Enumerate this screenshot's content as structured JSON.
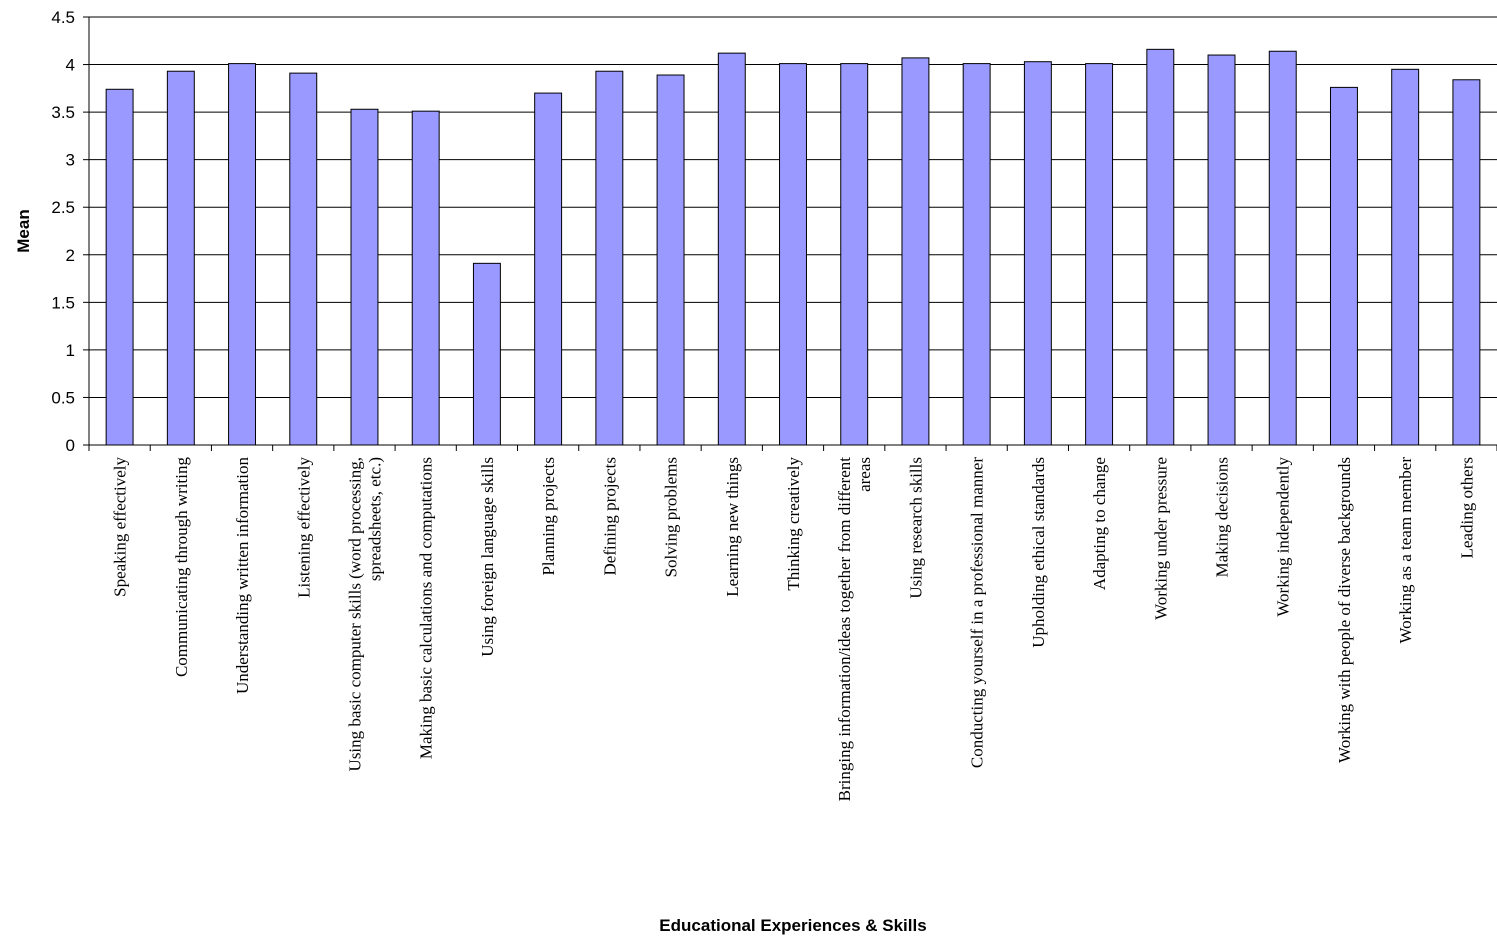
{
  "chart_data": {
    "type": "bar",
    "title": "",
    "xlabel": "Educational Experiences & Skills",
    "ylabel": "Mean",
    "ylim": [
      0,
      4.5
    ],
    "ytick_step": 0.5,
    "grid": true,
    "legend": "none",
    "bar_color": "#9999ff",
    "bar_outline": "#000000",
    "yticks": [
      "0",
      "0.5",
      "1",
      "1.5",
      "2",
      "2.5",
      "3",
      "3.5",
      "4",
      "4.5"
    ],
    "categories": [
      [
        "Speaking effectively"
      ],
      [
        "Communicating through writing"
      ],
      [
        "Understanding written information"
      ],
      [
        "Listening effectively"
      ],
      [
        "Using basic computer skills (word processing,",
        "spreadsheets, etc.)"
      ],
      [
        "Making basic calculations and computations"
      ],
      [
        "Using foreign language skills"
      ],
      [
        "Planning projects"
      ],
      [
        "Defining projects"
      ],
      [
        "Solving problems"
      ],
      [
        "Learning new things"
      ],
      [
        "Thinking creatively"
      ],
      [
        "Bringing information/ideas together from different",
        "areas"
      ],
      [
        "Using research skills"
      ],
      [
        "Conducting yourself in a professional manner"
      ],
      [
        "Upholding ethical standards"
      ],
      [
        "Adapting to change"
      ],
      [
        "Working under pressure"
      ],
      [
        "Making decisions"
      ],
      [
        "Working independently"
      ],
      [
        "Working with people of diverse backgrounds"
      ],
      [
        "Working as a team member"
      ],
      [
        "Leading others"
      ]
    ],
    "values": [
      3.74,
      3.93,
      4.01,
      3.91,
      3.53,
      3.51,
      1.91,
      3.7,
      3.93,
      3.89,
      4.12,
      4.01,
      4.01,
      4.07,
      4.01,
      4.03,
      4.01,
      4.16,
      4.1,
      4.14,
      3.76,
      3.95,
      3.84
    ]
  }
}
